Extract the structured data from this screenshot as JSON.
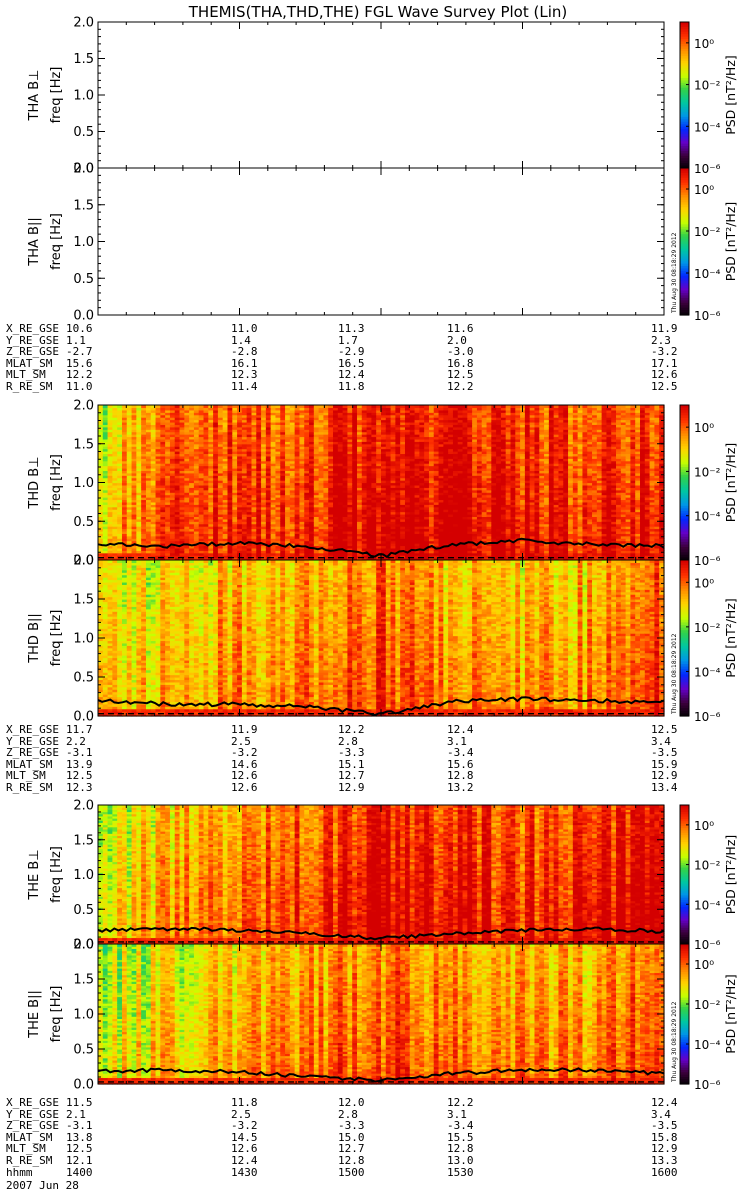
{
  "title": "THEMIS(THA,THD,THE) FGL Wave Survey Plot (Lin)",
  "date": "2007 Jun 28",
  "stamp": "Thu Aug 30 08:18:29 2012",
  "colorbar": {
    "label": "PSD [nT²/Hz]",
    "tick_labels": [
      "10⁰",
      "10⁻²",
      "10⁻⁴",
      "10⁻⁶"
    ],
    "colors": [
      "#d40000",
      "#ff3000",
      "#ff8c00",
      "#ffd200",
      "#c8ff00",
      "#32d24a",
      "#00c8a0",
      "#0096e6",
      "#0028ff",
      "#6400c8",
      "#3c003c",
      "#000000"
    ]
  },
  "chart_data": [
    {
      "type": "heatmap",
      "id": "tha-bperp",
      "ylabel": "THA B⊥",
      "ylabel2": "freq [Hz]",
      "yticks": [
        "0.0",
        "0.5",
        "1.0",
        "1.5",
        "2.0"
      ],
      "ylim": [
        0,
        2
      ],
      "data_present": false
    },
    {
      "type": "heatmap",
      "id": "tha-bpar",
      "ylabel": "THA B||",
      "ylabel2": "freq [Hz]",
      "yticks": [
        "0.0",
        "0.5",
        "1.0",
        "1.5",
        "2.0"
      ],
      "ylim": [
        0,
        2
      ],
      "data_present": false
    },
    {
      "type": "heatmap",
      "id": "thd-bperp",
      "ylabel": "THD B⊥",
      "ylabel2": "freq [Hz]",
      "yticks": [
        "0.0",
        "0.5",
        "1.0",
        "1.5",
        "2.0"
      ],
      "ylim": [
        0,
        2
      ],
      "data_present": true,
      "x": [
        1400,
        1415,
        1430,
        1445,
        1500,
        1515,
        1530,
        1545,
        1600
      ],
      "psd_exponent_mean": [
        -1.2,
        0.1,
        0.3,
        0.4,
        0.9,
        0.6,
        0.5,
        0.3,
        0.6
      ],
      "overlay_line": [
        0.2,
        0.18,
        0.22,
        0.17,
        0.05,
        0.2,
        0.25,
        0.2,
        0.18
      ]
    },
    {
      "type": "heatmap",
      "id": "thd-bpar",
      "ylabel": "THD B||",
      "ylabel2": "freq [Hz]",
      "yticks": [
        "0.0",
        "0.5",
        "1.0",
        "1.5",
        "2.0"
      ],
      "ylim": [
        0,
        2
      ],
      "data_present": true,
      "x": [
        1400,
        1415,
        1430,
        1445,
        1500,
        1515,
        1530,
        1545,
        1600
      ],
      "psd_exponent_mean": [
        -1.4,
        -0.8,
        -0.6,
        -0.4,
        0.0,
        -0.6,
        -0.7,
        -0.6,
        0.2
      ],
      "overlay_line": [
        0.2,
        0.15,
        0.15,
        0.12,
        0.02,
        0.18,
        0.22,
        0.2,
        0.18
      ]
    },
    {
      "type": "heatmap",
      "id": "the-bperp",
      "ylabel": "THE B⊥",
      "ylabel2": "freq [Hz]",
      "yticks": [
        "0.0",
        "0.5",
        "1.0",
        "1.5",
        "2.0"
      ],
      "ylim": [
        0,
        2
      ],
      "data_present": true,
      "x": [
        1400,
        1415,
        1430,
        1445,
        1500,
        1515,
        1530,
        1545,
        1600
      ],
      "psd_exponent_mean": [
        -1.3,
        -0.6,
        -0.3,
        0.2,
        0.8,
        0.6,
        0.3,
        0.4,
        0.7
      ],
      "overlay_line": [
        0.2,
        0.22,
        0.2,
        0.15,
        0.08,
        0.15,
        0.2,
        0.22,
        0.18
      ]
    },
    {
      "type": "heatmap",
      "id": "the-bpar",
      "ylabel": "THE B||",
      "ylabel2": "freq [Hz]",
      "yticks": [
        "0.0",
        "0.5",
        "1.0",
        "1.5",
        "2.0"
      ],
      "ylim": [
        0,
        2
      ],
      "data_present": true,
      "x": [
        1400,
        1415,
        1430,
        1445,
        1500,
        1515,
        1530,
        1545,
        1600
      ],
      "psd_exponent_mean": [
        -1.5,
        -1.0,
        -0.7,
        -0.4,
        0.1,
        -0.4,
        -0.6,
        -0.5,
        0.3
      ],
      "overlay_line": [
        0.18,
        0.2,
        0.17,
        0.1,
        0.05,
        0.15,
        0.2,
        0.2,
        0.15
      ]
    }
  ],
  "ephemeris": {
    "tha": {
      "labels": [
        "X_RE_GSE",
        "Y_RE_GSE",
        "Z_RE_GSE",
        "MLAT_SM",
        "MLT_SM",
        "R_RE_SM"
      ],
      "values": [
        [
          "10.6",
          "11.0",
          "11.3",
          "11.6",
          "11.9"
        ],
        [
          "1.1",
          "1.4",
          "1.7",
          "2.0",
          "2.3"
        ],
        [
          "-2.7",
          "-2.8",
          "-2.9",
          "-3.0",
          "-3.2"
        ],
        [
          "15.6",
          "16.1",
          "16.5",
          "16.8",
          "17.1"
        ],
        [
          "12.2",
          "12.3",
          "12.4",
          "12.5",
          "12.6"
        ],
        [
          "11.0",
          "11.4",
          "11.8",
          "12.2",
          "12.5"
        ]
      ]
    },
    "thd": {
      "labels": [
        "X_RE_GSE",
        "Y_RE_GSE",
        "Z_RE_GSE",
        "MLAT_SM",
        "MLT_SM",
        "R_RE_SM"
      ],
      "values": [
        [
          "11.7",
          "11.9",
          "12.2",
          "12.4",
          "12.5"
        ],
        [
          "2.2",
          "2.5",
          "2.8",
          "3.1",
          "3.4"
        ],
        [
          "-3.1",
          "-3.2",
          "-3.3",
          "-3.4",
          "-3.5"
        ],
        [
          "13.9",
          "14.6",
          "15.1",
          "15.6",
          "15.9"
        ],
        [
          "12.5",
          "12.6",
          "12.7",
          "12.8",
          "12.9"
        ],
        [
          "12.3",
          "12.6",
          "12.9",
          "13.2",
          "13.4"
        ]
      ]
    },
    "the": {
      "labels": [
        "X_RE_GSE",
        "Y_RE_GSE",
        "Z_RE_GSE",
        "MLAT_SM",
        "MLT_SM",
        "R_RE_SM",
        "hhmm"
      ],
      "values": [
        [
          "11.5",
          "11.8",
          "12.0",
          "12.2",
          "12.4"
        ],
        [
          "2.1",
          "2.5",
          "2.8",
          "3.1",
          "3.4"
        ],
        [
          "-3.1",
          "-3.2",
          "-3.3",
          "-3.4",
          "-3.5"
        ],
        [
          "13.8",
          "14.5",
          "15.0",
          "15.5",
          "15.8"
        ],
        [
          "12.5",
          "12.6",
          "12.7",
          "12.8",
          "12.9"
        ],
        [
          "12.1",
          "12.4",
          "12.8",
          "13.0",
          "13.3"
        ],
        [
          "1400",
          "1430",
          "1500",
          "1530",
          "1600"
        ]
      ]
    }
  }
}
